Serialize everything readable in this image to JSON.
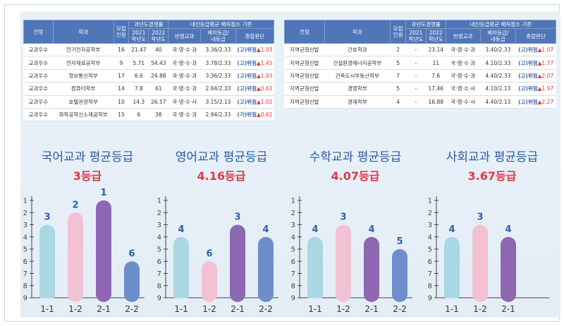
{
  "table_left": {
    "headers": {
      "type": "전형",
      "dept": "학과",
      "quota": "모집\n인원",
      "competition": "과년도경쟁률",
      "y2021": "2021\n학년도",
      "y2022": "2022\n학년도",
      "grade_criteria": "내신등급평균 배치점수 기준",
      "subjects": "반영교과",
      "score": "배치등급/\n내등급",
      "verdict": "종합판단"
    },
    "rows": [
      {
        "type": "교과우수",
        "dept": "전기전자공학부",
        "quota": "16",
        "y2021": "21.47",
        "y2022": "40",
        "subjects": "국·영·수·과",
        "score": "3.36/2.33",
        "tag": "(고)위험",
        "arrow": "▲",
        "diff": "1.03"
      },
      {
        "type": "교과우수",
        "dept": "전자재료공학부",
        "quota": "9",
        "y2021": "5.71",
        "y2022": "54.43",
        "subjects": "국·영·수·과",
        "score": "3.78/2.33",
        "tag": "(고)위험",
        "arrow": "▲",
        "diff": "1.45"
      },
      {
        "type": "교과우수",
        "dept": "정보통신학부",
        "quota": "17",
        "y2021": "6.6",
        "y2022": "24.88",
        "subjects": "국·영·수·과",
        "score": "3.36/2.33",
        "tag": "(고)위험",
        "arrow": "▲",
        "diff": "1.03"
      },
      {
        "type": "교과우수",
        "dept": "컴퓨터학부",
        "quota": "14",
        "y2021": "7.8",
        "y2022": "61",
        "subjects": "국·영·수·과",
        "score": "2.94/2.33",
        "tag": "(고)위험",
        "arrow": "▲",
        "diff": "0.61"
      },
      {
        "type": "교과우수",
        "dept": "호텔관광학부",
        "quota": "10",
        "y2021": "14.3",
        "y2022": "26.57",
        "subjects": "국·영·수·사",
        "score": "3.15/2.13",
        "tag": "(고)위험",
        "arrow": "▲",
        "diff": "1.02"
      },
      {
        "type": "교과우수",
        "dept": "화학공학신소재공학부",
        "quota": "15",
        "y2021": "6",
        "y2022": "38",
        "subjects": "국·영·수·과",
        "score": "2.94/2.33",
        "tag": "(가)위험",
        "arrow": "▲",
        "diff": "0.61"
      }
    ]
  },
  "table_right": {
    "headers": {
      "type": "전형",
      "dept": "학과",
      "quota": "모집\n인원",
      "competition": "과년도경쟁률",
      "y2021": "2021\n학년도",
      "y2022": "2022\n학년도",
      "grade_criteria": "내신등급평균 배치점수 기준",
      "subjects": "반영교과",
      "score": "배치등급/\n내등급",
      "verdict": "종합판단"
    },
    "rows": [
      {
        "type": "지역균형선발",
        "dept": "간호학과",
        "quota": "2",
        "y2021": "-",
        "y2022": "23.14",
        "subjects": "국·영·수·과",
        "score": "3.40/2.33",
        "tag": "(고)위험",
        "arrow": "▲",
        "diff": "1.07"
      },
      {
        "type": "지역균형선발",
        "dept": "건설환경에너지공학부",
        "quota": "5",
        "y2021": "-",
        "y2022": "11",
        "subjects": "국·영·수·과",
        "score": "4.10/2.33",
        "tag": "(고)위험",
        "arrow": "▲",
        "diff": "1.77"
      },
      {
        "type": "지역균형선발",
        "dept": "건축도시부동산학부",
        "quota": "7",
        "y2021": "-",
        "y2022": "7.6",
        "subjects": "국·영·수·과",
        "score": "4.40/2.33",
        "tag": "(고)위험",
        "arrow": "▲",
        "diff": "2.07"
      },
      {
        "type": "지역균형선발",
        "dept": "경영학부",
        "quota": "5",
        "y2021": "-",
        "y2022": "17.46",
        "subjects": "국·영·수·사",
        "score": "4.10/2.13",
        "tag": "(고)위험",
        "arrow": "▲",
        "diff": "1.97"
      },
      {
        "type": "지역균형선발",
        "dept": "경제학부",
        "quota": "4",
        "y2021": "-",
        "y2022": "16.88",
        "subjects": "국·영·수·사",
        "score": "4.40/2.13",
        "tag": "(고)위험",
        "arrow": "▲",
        "diff": "2.27"
      }
    ]
  },
  "chart_data": [
    {
      "type": "bar",
      "title": "국어교과 평균등급",
      "subtitle": "3등급",
      "categories": [
        "1-1",
        "1-2",
        "2-1",
        "2-2"
      ],
      "values": [
        3,
        2,
        1,
        6
      ],
      "colors": [
        "#a9d7e3",
        "#f2c2d4",
        "#8e67b2",
        "#6e8ecb"
      ],
      "ylim": [
        1,
        9
      ],
      "yticks": [
        1,
        2,
        3,
        4,
        5,
        6,
        7,
        8,
        9
      ],
      "inverted": true
    },
    {
      "type": "bar",
      "title": "영어교과 평균등급",
      "subtitle": "4.16등급",
      "categories": [
        "1-1",
        "1-2",
        "2-1",
        "2-2"
      ],
      "values": [
        4,
        6,
        3,
        4
      ],
      "colors": [
        "#a9d7e3",
        "#f2c2d4",
        "#8e67b2",
        "#6e8ecb"
      ],
      "ylim": [
        1,
        9
      ],
      "yticks": [
        1,
        2,
        3,
        4,
        5,
        6,
        7,
        8,
        9
      ],
      "inverted": true
    },
    {
      "type": "bar",
      "title": "수학교과 평균등급",
      "subtitle": "4.07등급",
      "categories": [
        "1-1",
        "1-2",
        "2-1",
        "2-2"
      ],
      "values": [
        4,
        3,
        4,
        5
      ],
      "colors": [
        "#a9d7e3",
        "#f2c2d4",
        "#8e67b2",
        "#6e8ecb"
      ],
      "ylim": [
        1,
        9
      ],
      "yticks": [
        1,
        2,
        3,
        4,
        5,
        6,
        7,
        8,
        9
      ],
      "inverted": true
    },
    {
      "type": "bar",
      "title": "사회교과 평균등급",
      "subtitle": "3.67등급",
      "categories": [
        "1-1",
        "1-2",
        "2-1"
      ],
      "values": [
        4,
        3,
        4
      ],
      "colors": [
        "#a9d7e3",
        "#f2c2d4",
        "#8e67b2"
      ],
      "ylim": [
        1,
        9
      ],
      "yticks": [
        1,
        2,
        3,
        4,
        5,
        6,
        7,
        8,
        9
      ],
      "inverted": true
    }
  ]
}
